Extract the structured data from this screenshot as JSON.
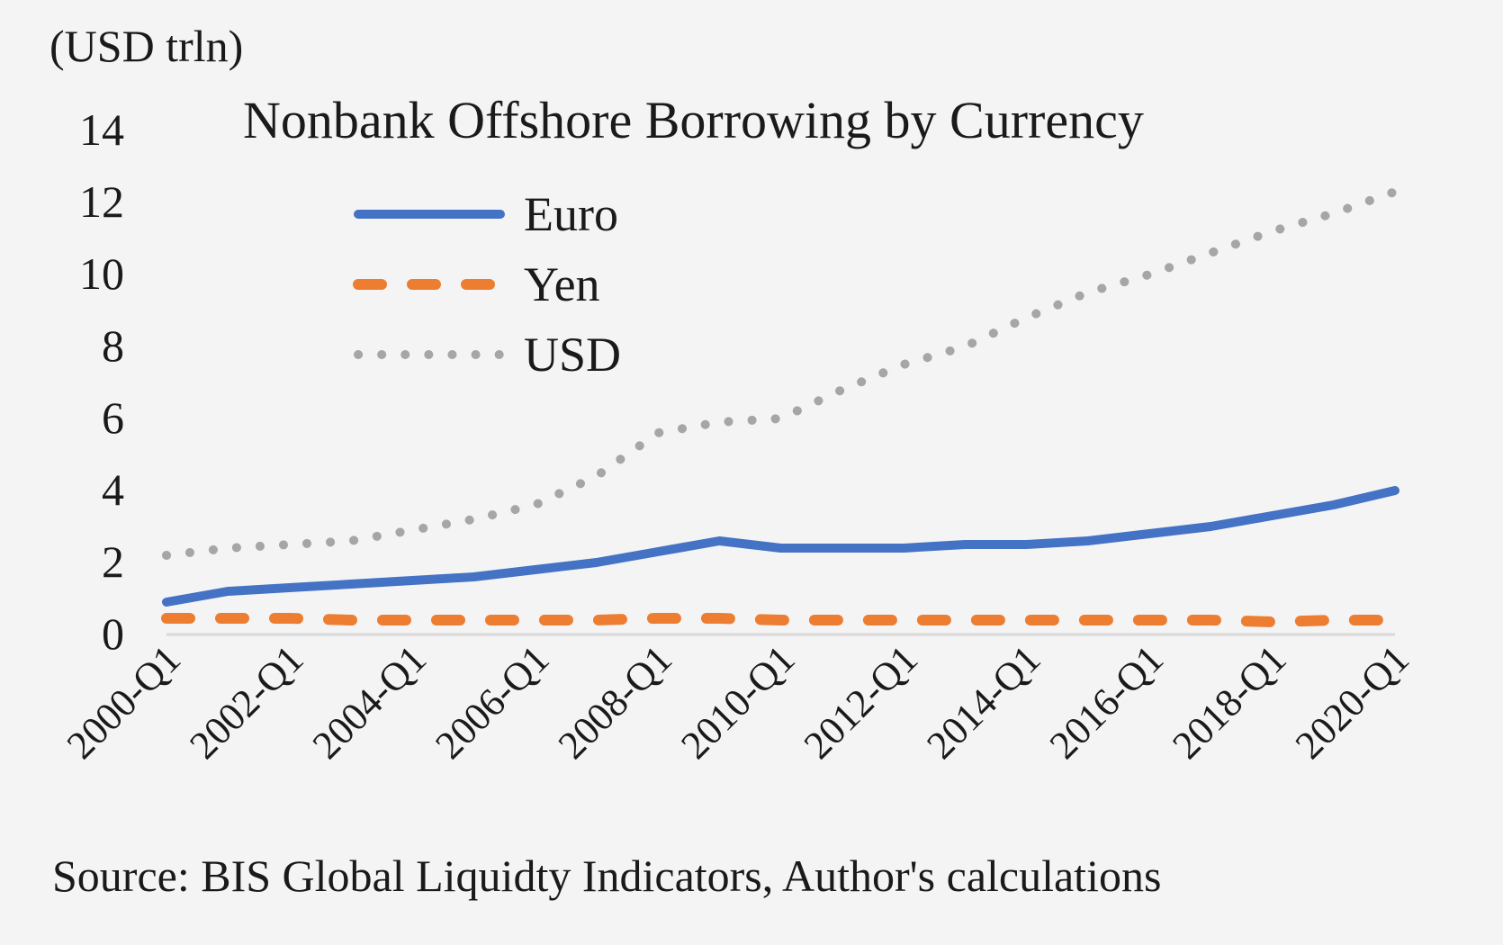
{
  "chart_data": {
    "type": "line",
    "title": "Nonbank Offshore Borrowing by Currency",
    "unit_label": "(USD trln)",
    "source": "Source: BIS Global Liquidty Indicators, Author's calculations",
    "ylim": [
      0,
      14
    ],
    "yticks": [
      "0",
      "2",
      "4",
      "6",
      "8",
      "10",
      "12",
      "14"
    ],
    "xticks": [
      "2000-Q1",
      "2002-Q1",
      "2004-Q1",
      "2006-Q1",
      "2008-Q1",
      "2010-Q1",
      "2012-Q1",
      "2014-Q1",
      "2016-Q1",
      "2018-Q1",
      "2020-Q1"
    ],
    "x": [
      "2000-Q1",
      "2001-Q1",
      "2002-Q1",
      "2003-Q1",
      "2004-Q1",
      "2005-Q1",
      "2006-Q1",
      "2007-Q1",
      "2008-Q1",
      "2009-Q1",
      "2010-Q1",
      "2011-Q1",
      "2012-Q1",
      "2013-Q1",
      "2014-Q1",
      "2015-Q1",
      "2016-Q1",
      "2017-Q1",
      "2018-Q1",
      "2019-Q1",
      "2020-Q1"
    ],
    "legend_position": "top-left",
    "grid": false,
    "series": [
      {
        "name": "Euro",
        "color": "#4472c4",
        "style": "solid",
        "values": [
          0.9,
          1.2,
          1.3,
          1.4,
          1.5,
          1.6,
          1.8,
          2.0,
          2.3,
          2.6,
          2.4,
          2.4,
          2.4,
          2.5,
          2.5,
          2.6,
          2.8,
          3.0,
          3.3,
          3.6,
          4.0
        ]
      },
      {
        "name": "Yen",
        "color": "#ed7d31",
        "style": "dashed",
        "values": [
          0.45,
          0.45,
          0.45,
          0.4,
          0.4,
          0.4,
          0.4,
          0.4,
          0.45,
          0.45,
          0.4,
          0.4,
          0.4,
          0.4,
          0.4,
          0.4,
          0.4,
          0.4,
          0.35,
          0.4,
          0.4
        ]
      },
      {
        "name": "USD",
        "color": "#a6a6a6",
        "style": "dotted",
        "values": [
          2.2,
          2.4,
          2.5,
          2.6,
          2.9,
          3.2,
          3.6,
          4.4,
          5.6,
          5.9,
          6.0,
          6.8,
          7.5,
          8.0,
          8.8,
          9.5,
          10.0,
          10.6,
          11.2,
          11.7,
          12.3
        ]
      }
    ]
  }
}
